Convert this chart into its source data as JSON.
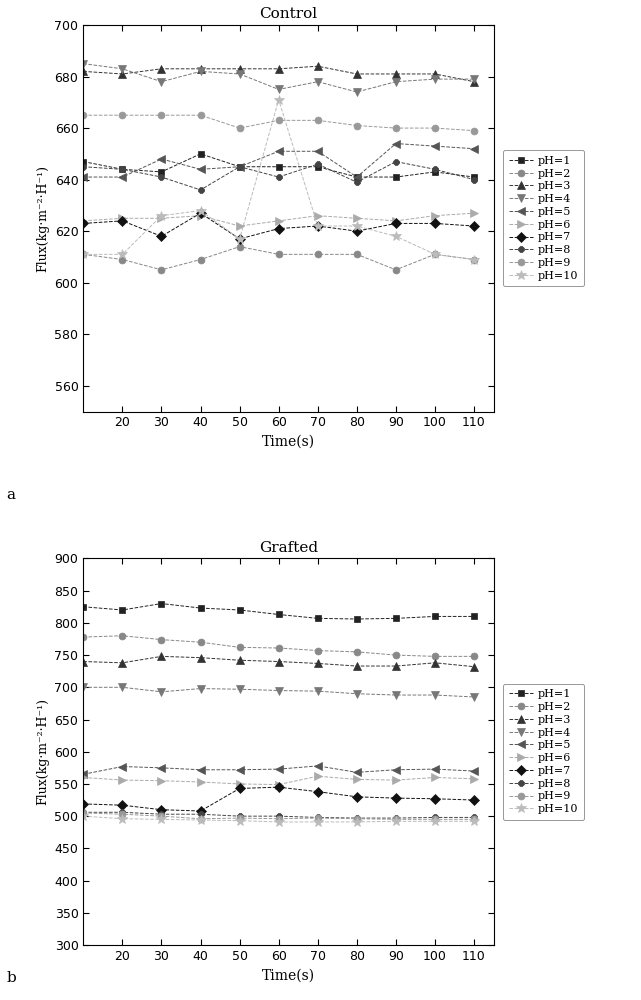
{
  "time": [
    10,
    20,
    30,
    40,
    50,
    60,
    70,
    80,
    90,
    100,
    110
  ],
  "control": {
    "title": "Control",
    "ylabel": "Flux(kg·m⁻²·H⁻¹)",
    "xlabel": "Time(s)",
    "ylim": [
      550,
      700
    ],
    "yticks": [
      560,
      580,
      600,
      620,
      640,
      660,
      680,
      700
    ],
    "xlim": [
      10,
      115
    ],
    "xticks": [
      20,
      30,
      40,
      50,
      60,
      70,
      80,
      90,
      100,
      110
    ],
    "series": {
      "pH=1": [
        647,
        644,
        643,
        650,
        645,
        645,
        645,
        641,
        641,
        643,
        641
      ],
      "pH=2": [
        611,
        609,
        605,
        609,
        614,
        611,
        611,
        611,
        605,
        611,
        609
      ],
      "pH=3": [
        682,
        681,
        683,
        683,
        683,
        683,
        684,
        681,
        681,
        681,
        678
      ],
      "pH=4": [
        685,
        683,
        678,
        682,
        681,
        675,
        678,
        674,
        678,
        679,
        679
      ],
      "pH=5": [
        641,
        641,
        648,
        644,
        645,
        651,
        651,
        641,
        654,
        653,
        652
      ],
      "pH=6": [
        624,
        625,
        625,
        626,
        622,
        624,
        626,
        625,
        624,
        626,
        627
      ],
      "pH=7": [
        623,
        624,
        618,
        627,
        617,
        621,
        622,
        620,
        623,
        623,
        622
      ],
      "pH=8": [
        645,
        644,
        641,
        636,
        645,
        641,
        646,
        639,
        647,
        644,
        640
      ],
      "pH=9": [
        665,
        665,
        665,
        665,
        660,
        663,
        663,
        661,
        660,
        660,
        659
      ],
      "pH=10": [
        611,
        611,
        626,
        628,
        617,
        671,
        622,
        622,
        618,
        611,
        609
      ]
    }
  },
  "grafted": {
    "title": "Grafted",
    "ylabel": "Flux(kg·m⁻²·H⁻¹)",
    "xlabel": "Time(s)",
    "ylim": [
      300,
      900
    ],
    "yticks": [
      300,
      350,
      400,
      450,
      500,
      550,
      600,
      650,
      700,
      750,
      800,
      850,
      900
    ],
    "xlim": [
      10,
      115
    ],
    "xticks": [
      20,
      30,
      40,
      50,
      60,
      70,
      80,
      90,
      100,
      110
    ],
    "series": {
      "pH=1": [
        825,
        820,
        830,
        823,
        820,
        813,
        807,
        806,
        807,
        810,
        810
      ],
      "pH=2": [
        778,
        780,
        774,
        770,
        762,
        761,
        757,
        755,
        750,
        748,
        748
      ],
      "pH=3": [
        740,
        738,
        748,
        746,
        742,
        740,
        737,
        733,
        733,
        738,
        732
      ],
      "pH=4": [
        700,
        700,
        693,
        698,
        697,
        695,
        694,
        690,
        688,
        688,
        685
      ],
      "pH=5": [
        565,
        577,
        575,
        572,
        572,
        573,
        578,
        568,
        572,
        573,
        570
      ],
      "pH=6": [
        560,
        556,
        555,
        553,
        550,
        549,
        562,
        557,
        556,
        560,
        558
      ],
      "pH=7": [
        519,
        517,
        510,
        508,
        543,
        545,
        538,
        530,
        528,
        527,
        525
      ],
      "pH=8": [
        506,
        506,
        503,
        503,
        500,
        500,
        498,
        497,
        497,
        498,
        498
      ],
      "pH=9": [
        505,
        503,
        500,
        496,
        497,
        496,
        497,
        496,
        495,
        495,
        495
      ],
      "pH=10": [
        500,
        496,
        495,
        494,
        493,
        491,
        491,
        491,
        492,
        492,
        492
      ]
    }
  },
  "marker_styles": [
    "s",
    "o",
    "^",
    "v",
    "<",
    ">",
    "D",
    "8",
    "o",
    "*"
  ],
  "line_colors": [
    "#222222",
    "#888888",
    "#333333",
    "#777777",
    "#555555",
    "#aaaaaa",
    "#111111",
    "#444444",
    "#999999",
    "#bbbbbb"
  ],
  "marker_sizes": [
    5,
    5,
    6,
    6,
    6,
    6,
    5,
    5,
    5,
    7
  ],
  "legend_labels": [
    "pH=1",
    "pH=2",
    "pH=3",
    "pH=4",
    "pH=5",
    "pH=6",
    "pH=7",
    "pH=8",
    "pH=9",
    "pH=10"
  ]
}
